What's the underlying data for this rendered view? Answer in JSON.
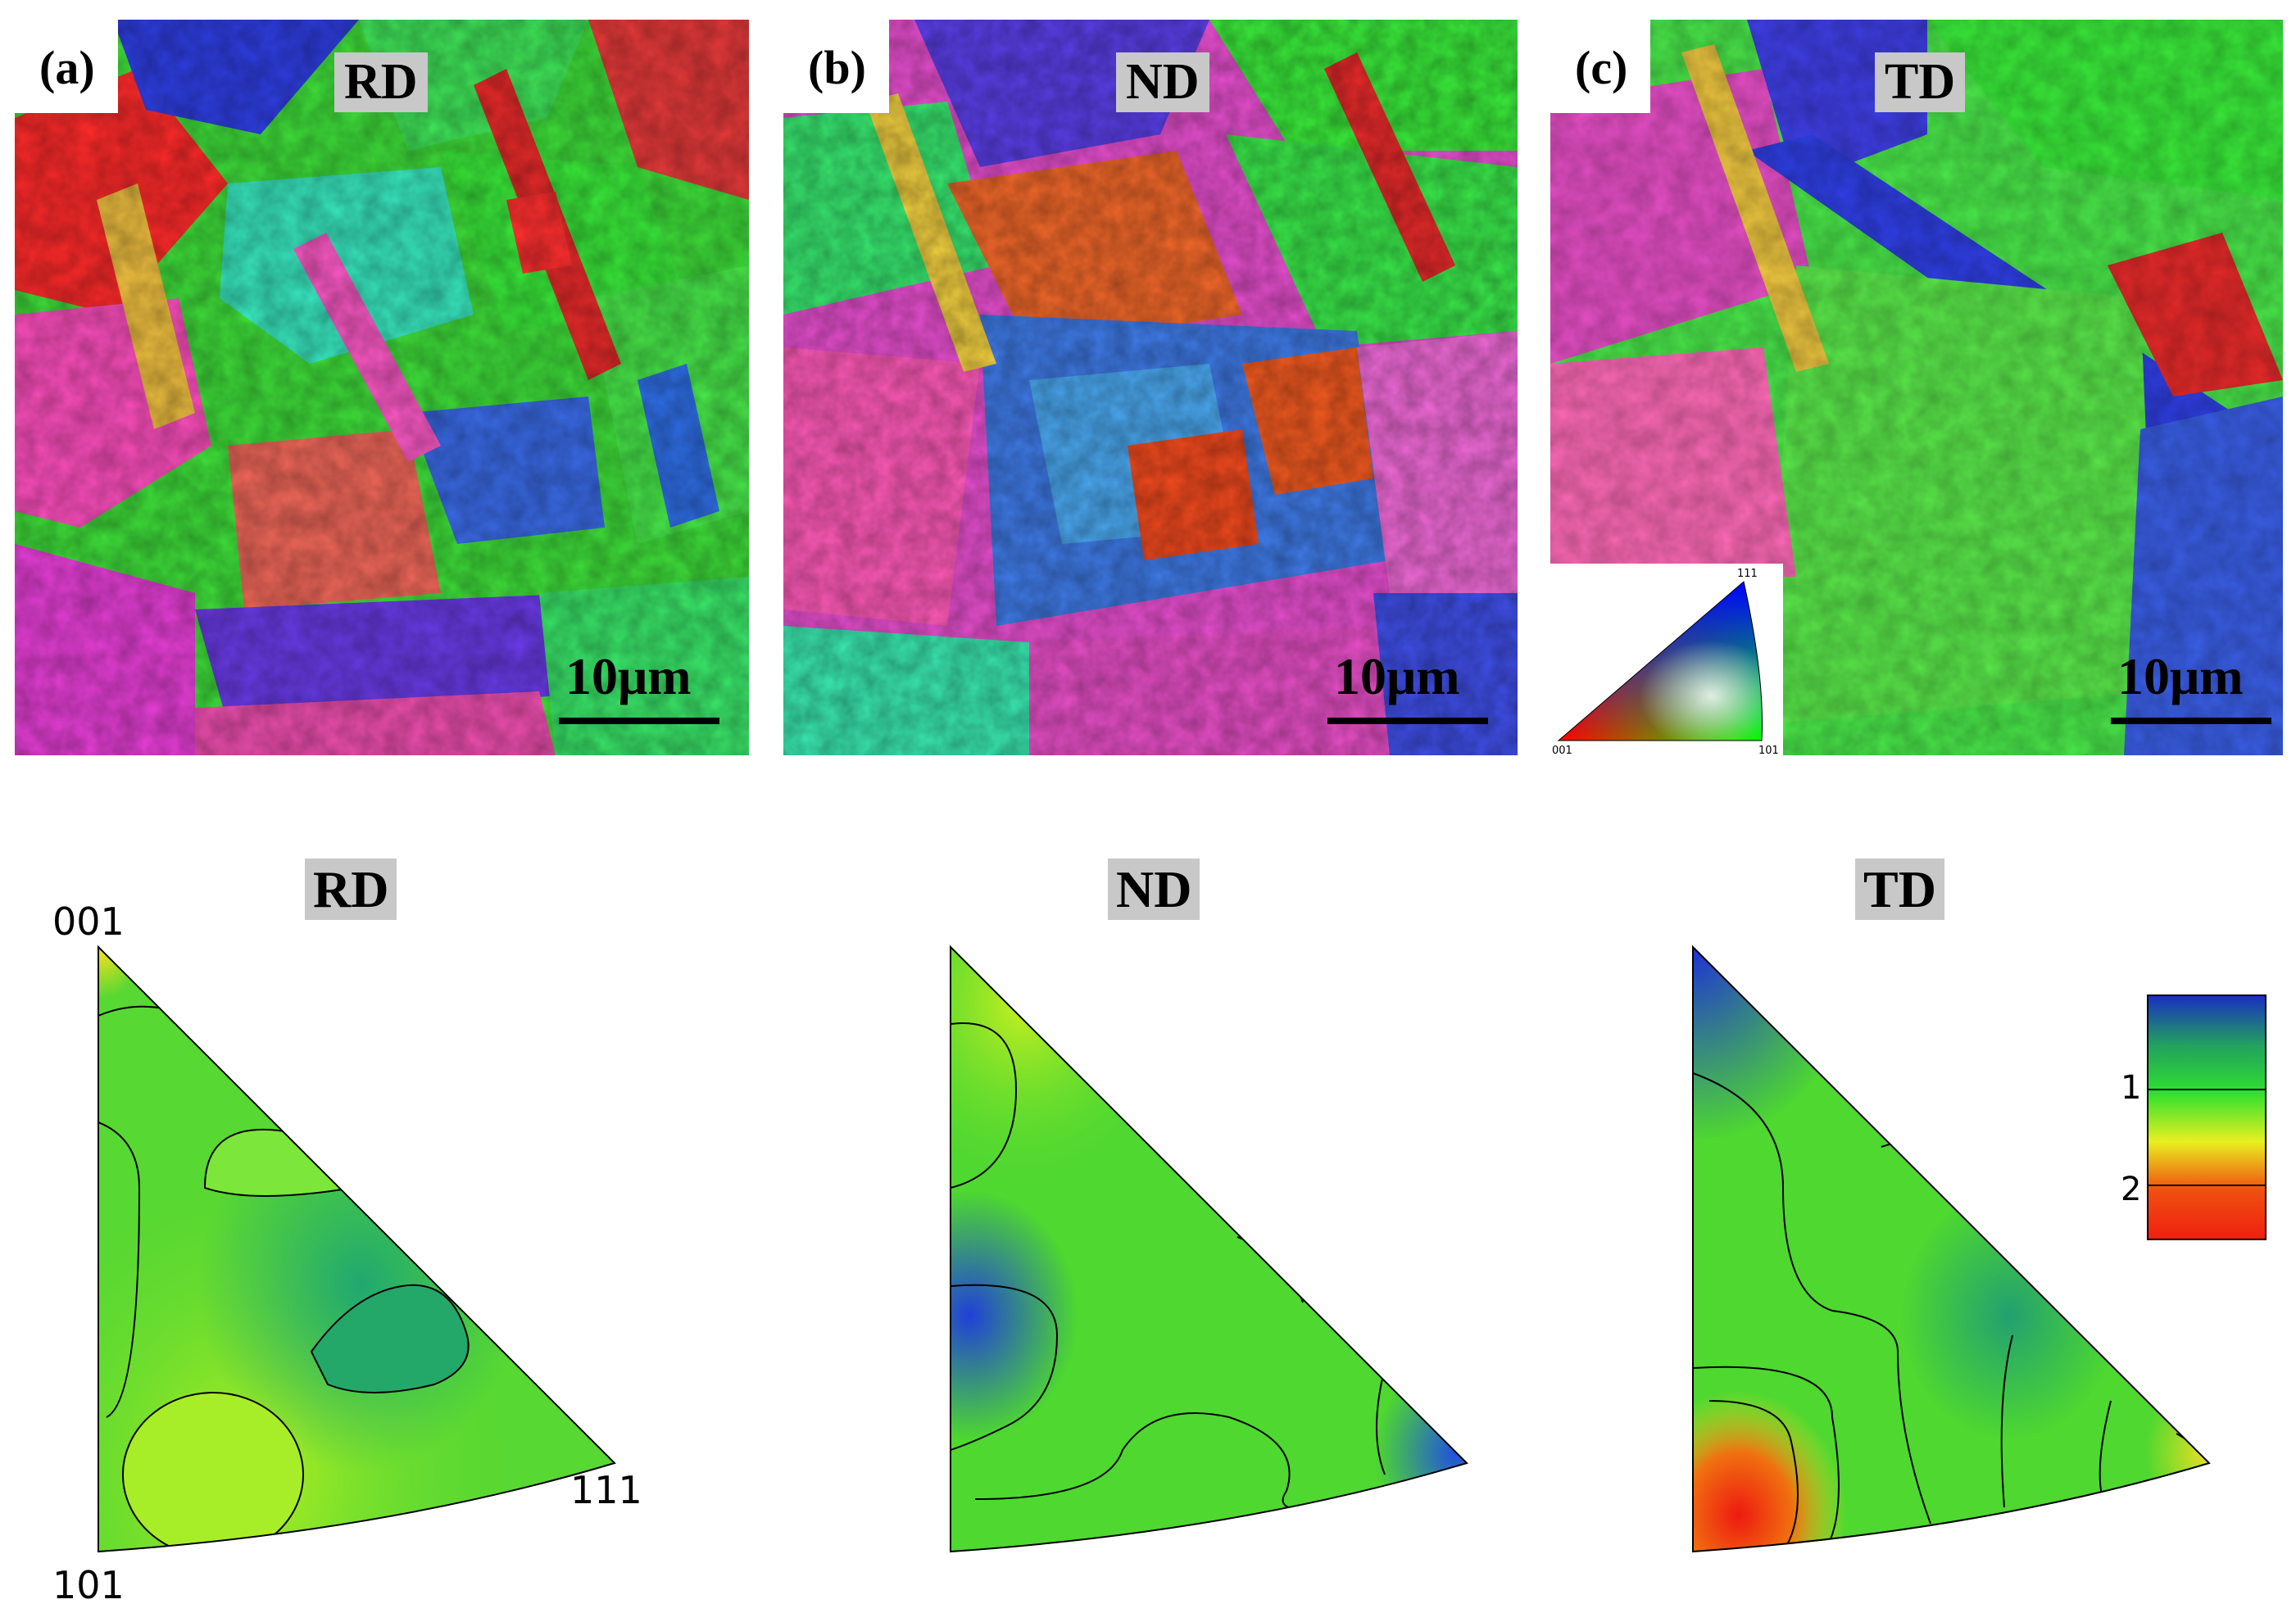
{
  "panels": [
    {
      "label": "(a)",
      "direction": "RD",
      "scale": "10μm"
    },
    {
      "label": "(b)",
      "direction": "ND",
      "scale": "10μm"
    },
    {
      "label": "(c)",
      "direction": "TD",
      "scale": "10μm"
    }
  ],
  "ipf_key": {
    "top": "111",
    "left": "001",
    "right": "101"
  },
  "ipf_plots": [
    {
      "title": "RD",
      "corner_001": "001",
      "corner_101": "101",
      "corner_111": "111"
    },
    {
      "title": "ND"
    },
    {
      "title": "TD"
    }
  ],
  "colorbar": {
    "labels": [
      "1",
      "2"
    ],
    "colors": [
      "#1a2fc0",
      "#22a060",
      "#2fe02f",
      "#e8f020",
      "#f05010",
      "#ee2010"
    ]
  }
}
